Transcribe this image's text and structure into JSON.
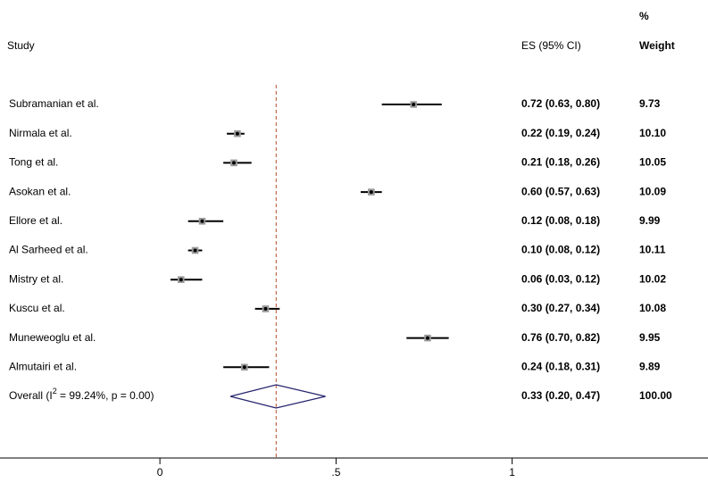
{
  "chart_data": {
    "type": "forest",
    "header": {
      "study": "Study",
      "es": "ES (95% CI)",
      "weight_top": "%",
      "weight": "Weight"
    },
    "studies": [
      "Subramanian et al.",
      "Nirmala et al.",
      "Tong et al.",
      "Asokan et al.",
      "Ellore et al.",
      "Al Sarheed et al.",
      "Mistry et al.",
      "Kuscu et al.",
      "Muneweoglu et al.",
      "Almutairi et al."
    ],
    "es": [
      0.72,
      0.22,
      0.21,
      0.6,
      0.12,
      0.1,
      0.06,
      0.3,
      0.76,
      0.24
    ],
    "lower": [
      0.63,
      0.19,
      0.18,
      0.57,
      0.08,
      0.08,
      0.03,
      0.27,
      0.7,
      0.18
    ],
    "upper": [
      0.8,
      0.24,
      0.26,
      0.63,
      0.18,
      0.12,
      0.12,
      0.34,
      0.82,
      0.31
    ],
    "es_labels": [
      "0.72 (0.63, 0.80)",
      "0.22 (0.19, 0.24)",
      "0.21 (0.18, 0.26)",
      "0.60 (0.57, 0.63)",
      "0.12 (0.08, 0.18)",
      "0.10 (0.08, 0.12)",
      "0.06 (0.03, 0.12)",
      "0.30 (0.27, 0.34)",
      "0.76 (0.70, 0.82)",
      "0.24 (0.18, 0.31)"
    ],
    "weights": [
      9.73,
      10.1,
      10.05,
      10.09,
      9.99,
      10.11,
      10.02,
      10.08,
      9.95,
      9.89
    ],
    "weight_labels": [
      "9.73",
      "10.10",
      "10.05",
      "10.09",
      "9.99",
      "10.11",
      "10.02",
      "10.08",
      "9.95",
      "9.89"
    ],
    "overall": {
      "label_parts": [
        "Overall  (I",
        "2",
        " = 99.24%, p = 0.00)"
      ],
      "es": 0.33,
      "lower": 0.2,
      "upper": 0.47,
      "es_label": "0.33 (0.20, 0.47)",
      "weight": 100,
      "weight_label": "100.00"
    },
    "xlim": [
      -0.454,
      1.556
    ],
    "xticks": [
      0,
      {
        "value": 0.5,
        "label": ".5"
      },
      1
    ],
    "ci_color": "#000000",
    "marker_color": "#9a9a9a",
    "diamond_color": "#25256e",
    "ref_line_color": "#b5502a"
  }
}
